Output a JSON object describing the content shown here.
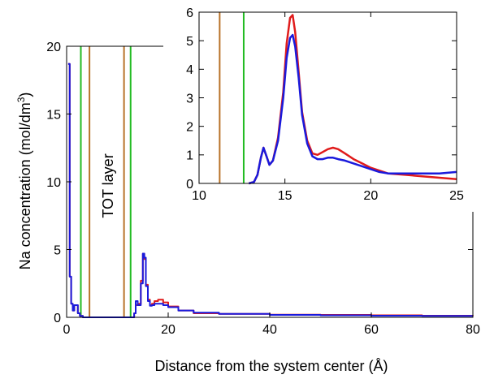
{
  "chart_data": [
    {
      "type": "line",
      "xlabel": "Distance from the system center (Å)",
      "ylabel_prefix": "Na concentration (mol/dm",
      "ylabel_sup": "3",
      "ylabel_suffix": ")",
      "xlim": [
        0,
        80
      ],
      "ylim": [
        0,
        20
      ],
      "xticks": [
        0,
        20,
        40,
        60,
        80
      ],
      "yticks": [
        0,
        5,
        10,
        15,
        20
      ],
      "grid": false,
      "annotations": [
        {
          "text": "TOT layer"
        }
      ],
      "vlines": [
        {
          "x": 2.8,
          "color": "#22bb22"
        },
        {
          "x": 4.5,
          "color": "#b8732a"
        },
        {
          "x": 11.3,
          "color": "#b8732a"
        },
        {
          "x": 12.6,
          "color": "#22bb22"
        }
      ],
      "series": [
        {
          "color": "#e01b1b",
          "x": [
            0.3,
            0.6,
            0.9,
            1.2,
            1.5,
            1.9,
            2.2,
            2.6,
            2.9,
            3.2,
            3.5,
            12.6,
            13.3,
            13.6,
            14.0,
            14.6,
            15.0,
            15.3,
            15.6,
            16.0,
            16.4,
            16.8,
            17.3,
            18.0,
            19.0,
            20.0,
            22.0,
            25.0,
            30.0,
            40.0,
            50.0,
            60.0,
            70.0,
            80.0
          ],
          "y": [
            18.7,
            3.0,
            1.0,
            0.5,
            0.9,
            0.9,
            0.3,
            0.1,
            0.1,
            0.0,
            0.0,
            0.0,
            0.3,
            0.9,
            1.0,
            2.7,
            4.7,
            4.3,
            2.4,
            1.3,
            0.9,
            1.0,
            1.2,
            1.3,
            1.1,
            0.8,
            0.5,
            0.3,
            0.25,
            0.2,
            0.18,
            0.15,
            0.12,
            0.1
          ]
        },
        {
          "color": "#1a1adc",
          "x": [
            0.3,
            0.6,
            0.9,
            1.2,
            1.5,
            1.9,
            2.2,
            2.6,
            2.9,
            3.2,
            3.5,
            12.6,
            13.3,
            13.6,
            14.0,
            14.6,
            15.0,
            15.3,
            15.6,
            16.0,
            16.4,
            16.8,
            17.3,
            18.0,
            19.0,
            20.0,
            22.0,
            25.0,
            30.0,
            40.0,
            50.0,
            60.0,
            70.0,
            80.0
          ],
          "y": [
            18.7,
            3.0,
            1.0,
            0.5,
            0.9,
            0.9,
            0.3,
            0.1,
            0.1,
            0.0,
            0.0,
            0.0,
            0.3,
            1.2,
            0.9,
            2.5,
            4.7,
            4.4,
            2.3,
            1.2,
            0.85,
            0.9,
            1.0,
            1.0,
            0.9,
            0.75,
            0.5,
            0.35,
            0.25,
            0.18,
            0.15,
            0.12,
            0.1,
            0.1
          ]
        }
      ]
    },
    {
      "type": "line",
      "xlim": [
        10,
        25
      ],
      "ylim": [
        0,
        6
      ],
      "xticks": [
        10,
        15,
        20,
        25
      ],
      "yticks": [
        0,
        1,
        2,
        3,
        4,
        5,
        6
      ],
      "grid": false,
      "vlines": [
        {
          "x": 11.2,
          "color": "#b8732a"
        },
        {
          "x": 12.6,
          "color": "#22bb22"
        }
      ],
      "series": [
        {
          "color": "#e01b1b",
          "x": [
            12.9,
            13.2,
            13.4,
            13.6,
            13.75,
            13.9,
            14.1,
            14.3,
            14.6,
            14.9,
            15.1,
            15.3,
            15.45,
            15.6,
            15.8,
            16.0,
            16.3,
            16.6,
            16.9,
            17.2,
            17.5,
            17.8,
            18.1,
            18.5,
            19.0,
            19.5,
            20.0,
            20.5,
            21.0,
            22.0,
            23.0,
            24.0,
            25.0
          ],
          "y": [
            0.0,
            0.05,
            0.3,
            0.9,
            1.25,
            1.0,
            0.65,
            0.8,
            1.6,
            3.2,
            4.9,
            5.8,
            5.9,
            5.3,
            3.9,
            2.5,
            1.5,
            1.05,
            1.0,
            1.1,
            1.2,
            1.25,
            1.2,
            1.05,
            0.85,
            0.7,
            0.55,
            0.45,
            0.35,
            0.3,
            0.25,
            0.2,
            0.15
          ]
        },
        {
          "color": "#1a1adc",
          "x": [
            12.9,
            13.2,
            13.4,
            13.6,
            13.75,
            13.9,
            14.1,
            14.3,
            14.6,
            14.9,
            15.1,
            15.3,
            15.45,
            15.6,
            15.8,
            16.0,
            16.3,
            16.6,
            16.9,
            17.2,
            17.5,
            17.8,
            18.1,
            18.5,
            19.0,
            19.5,
            20.0,
            20.5,
            21.0,
            22.0,
            23.0,
            24.0,
            25.0
          ],
          "y": [
            0.0,
            0.05,
            0.3,
            0.9,
            1.25,
            1.0,
            0.65,
            0.8,
            1.5,
            3.0,
            4.4,
            5.1,
            5.2,
            4.8,
            3.7,
            2.4,
            1.4,
            0.95,
            0.85,
            0.85,
            0.9,
            0.9,
            0.85,
            0.8,
            0.7,
            0.6,
            0.5,
            0.4,
            0.35,
            0.35,
            0.35,
            0.35,
            0.4
          ]
        }
      ]
    }
  ]
}
